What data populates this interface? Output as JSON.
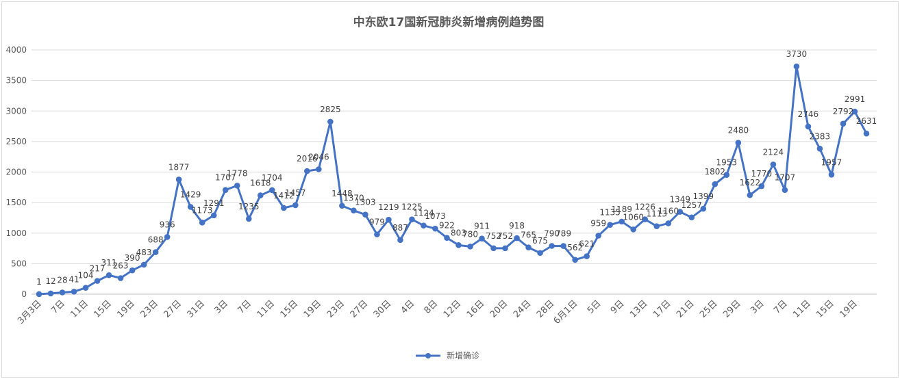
{
  "chart_data": {
    "type": "line",
    "title": "中东欧17国新冠肺炎新增病例趋势图",
    "ylim": [
      0,
      4000
    ],
    "yticks": [
      0,
      500,
      1000,
      1500,
      2000,
      2500,
      3000,
      3500,
      4000
    ],
    "grid": true,
    "legend_position": "bottom",
    "color": "#4472c4",
    "series": [
      {
        "name": "新增确诊",
        "values": [
          1,
          12,
          28,
          41,
          104,
          217,
          311,
          263,
          390,
          483,
          688,
          936,
          1877,
          1429,
          1173,
          1291,
          1707,
          1778,
          1235,
          1618,
          1704,
          1412,
          1457,
          2016,
          2046,
          2825,
          1448,
          1370,
          1303,
          979,
          1219,
          887,
          1225,
          1124,
          1073,
          922,
          803,
          780,
          911,
          752,
          752,
          918,
          765,
          675,
          790,
          789,
          562,
          621,
          959,
          1135,
          1189,
          1060,
          1226,
          1113,
          1160,
          1349,
          1257,
          1399,
          1802,
          1953,
          2480,
          1622,
          1770,
          2124,
          1707,
          3730,
          2746,
          2383,
          1957,
          2792,
          2991,
          2631
        ]
      }
    ],
    "x_tick_labels": [
      {
        "i": 0,
        "label": "3月3日"
      },
      {
        "i": 2,
        "label": "7日"
      },
      {
        "i": 4,
        "label": "11日"
      },
      {
        "i": 6,
        "label": "15日"
      },
      {
        "i": 8,
        "label": "19日"
      },
      {
        "i": 10,
        "label": "23日"
      },
      {
        "i": 12,
        "label": "27日"
      },
      {
        "i": 14,
        "label": "31日"
      },
      {
        "i": 16,
        "label": "3日"
      },
      {
        "i": 18,
        "label": "7日"
      },
      {
        "i": 20,
        "label": "11日"
      },
      {
        "i": 22,
        "label": "15日"
      },
      {
        "i": 24,
        "label": "19日"
      },
      {
        "i": 26,
        "label": "23日"
      },
      {
        "i": 28,
        "label": "27日"
      },
      {
        "i": 30,
        "label": "30日"
      },
      {
        "i": 32,
        "label": "4日"
      },
      {
        "i": 34,
        "label": "8日"
      },
      {
        "i": 36,
        "label": "12日"
      },
      {
        "i": 38,
        "label": "16日"
      },
      {
        "i": 40,
        "label": "20日"
      },
      {
        "i": 42,
        "label": "24日"
      },
      {
        "i": 44,
        "label": "28日"
      },
      {
        "i": 46,
        "label": "6月1日"
      },
      {
        "i": 48,
        "label": "5日"
      },
      {
        "i": 50,
        "label": "9日"
      },
      {
        "i": 52,
        "label": "13日"
      },
      {
        "i": 54,
        "label": "17日"
      },
      {
        "i": 56,
        "label": "21日"
      },
      {
        "i": 58,
        "label": "25日"
      },
      {
        "i": 60,
        "label": "29日"
      },
      {
        "i": 62,
        "label": "3日"
      },
      {
        "i": 64,
        "label": "7日"
      },
      {
        "i": 66,
        "label": "11日"
      },
      {
        "i": 68,
        "label": "15日"
      },
      {
        "i": 70,
        "label": "19日"
      }
    ]
  }
}
